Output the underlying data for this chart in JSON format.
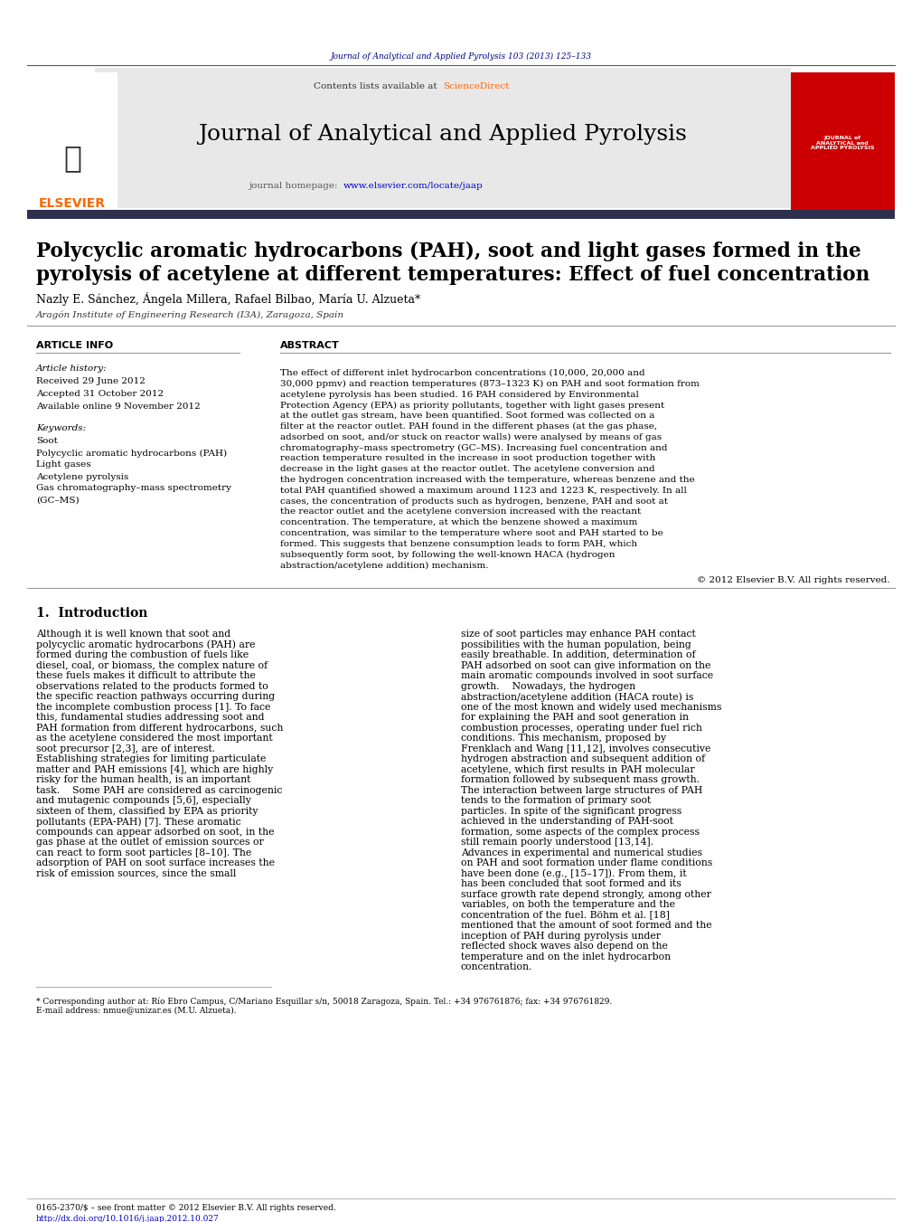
{
  "page_width": 10.2,
  "page_height": 13.51,
  "background_color": "#ffffff",
  "header_journal_text": "Journal of Analytical and Applied Pyrolysis 103 (2013) 125–133",
  "header_journal_color": "#00008B",
  "contents_text": "Contents lists available at",
  "sciencedirect_text": "ScienceDirect",
  "sciencedirect_color": "#FF6600",
  "journal_title": "Journal of Analytical and Applied Pyrolysis",
  "journal_homepage_text": "journal homepage:",
  "journal_homepage_url": "www.elsevier.com/locate/jaap",
  "journal_url_color": "#0000CC",
  "elsevier_color": "#FF6600",
  "elsevier_text": "ELSEVIER",
  "header_bg_color": "#E8E8E8",
  "dark_bar_color": "#2F2F4F",
  "article_title_line1": "Polycyclic aromatic hydrocarbons (PAH), soot and light gases formed in the",
  "article_title_line2": "pyrolysis of acetylene at different temperatures: Effect of fuel concentration",
  "authors": "Nazly E. Sánchez, Ángela Millera, Rafael Bilbao, María U. Alzueta*",
  "affiliation": "Aragón Institute of Engineering Research (I3A), Zaragoza, Spain",
  "article_info_label": "ARTICLE INFO",
  "abstract_label": "ABSTRACT",
  "article_history_label": "Article history:",
  "received_text": "Received 29 June 2012",
  "revised_text": "Accepted 31 October 2012",
  "available_text": "Available online 9 November 2012",
  "keywords_label": "Keywords:",
  "keyword1": "Soot",
  "keyword2": "Polycyclic aromatic hydrocarbons (PAH)",
  "keyword3": "Light gases",
  "keyword4": "Acetylene pyrolysis",
  "keyword5": "Gas chromatography–mass spectrometry",
  "keyword6": "(GC–MS)",
  "abstract_text": "The effect of different inlet hydrocarbon concentrations (10,000, 20,000 and 30,000 ppmv) and reaction temperatures (873–1323 K) on PAH and soot formation from acetylene pyrolysis has been studied. 16 PAH considered by Environmental Protection Agency (EPA) as priority pollutants, together with light gases present at the outlet gas stream, have been quantified. Soot formed was collected on a filter at the reactor outlet. PAH found in the different phases (at the gas phase, adsorbed on soot, and/or stuck on reactor walls) were analysed by means of gas chromatography–mass spectrometry (GC–MS). Increasing fuel concentration and reaction temperature resulted in the increase in soot production together with decrease in the light gases at the reactor outlet. The acetylene conversion and the hydrogen concentration increased with the temperature, whereas benzene and the total PAH quantified showed a maximum around 1123 and 1223 K, respectively. In all cases, the concentration of products such as hydrogen, benzene, PAH and soot at the reactor outlet and the acetylene conversion increased with the reactant concentration. The temperature, at which the benzene showed a maximum concentration, was similar to the temperature where soot and PAH started to be formed. This suggests that benzene consumption leads to form PAH, which subsequently form soot, by following the well-known HACA (hydrogen abstraction/acetylene addition) mechanism.",
  "copyright_text": "© 2012 Elsevier B.V. All rights reserved.",
  "intro_section_title": "1.  Introduction",
  "intro_col1": "Although it is well known that soot and polycyclic aromatic hydrocarbons (PAH) are formed during the combustion of fuels like diesel, coal, or biomass, the complex nature of these fuels makes it difficult to attribute the observations related to the products formed to the specific reaction pathways occurring during the incomplete combustion process [1]. To face this, fundamental studies addressing soot and PAH formation from different hydrocarbons, such as the acetylene considered the most important soot precursor [2,3], are of interest. Establishing strategies for limiting particulate matter and PAH emissions [4], which are highly risky for the human health, is an important task.\n   Some PAH are considered as carcinogenic and mutagenic compounds [5,6], especially sixteen of them, classified by EPA as priority pollutants (EPA-PAH) [7]. These aromatic compounds can appear adsorbed on soot, in the gas phase at the outlet of emission sources or can react to form soot particles [8–10]. The adsorption of PAH on soot surface increases the risk of emission sources, since the small",
  "intro_col2": "size of soot particles may enhance PAH contact possibilities with the human population, being easily breathable. In addition, determination of PAH adsorbed on soot can give information on the main aromatic compounds involved in soot surface growth.\n   Nowadays, the hydrogen abstraction/acetylene addition (HACA route) is one of the most known and widely used mechanisms for explaining the PAH and soot generation in combustion processes, operating under fuel rich conditions. This mechanism, proposed by Frenklach and Wang [11,12], involves consecutive hydrogen abstraction and subsequent addition of acetylene, which first results in PAH molecular formation followed by subsequent mass growth. The interaction between large structures of PAH tends to the formation of primary soot particles. In spite of the significant progress achieved in the understanding of PAH-soot formation, some aspects of the complex process still remain poorly understood [13,14].\n   Advances in experimental and numerical studies on PAH and soot formation under flame conditions have been done (e.g., [15–17]). From them, it has been concluded that soot formed and its surface growth rate depend strongly, among other variables, on both the temperature and the concentration of the fuel. Böhm et al. [18] mentioned that the amount of soot formed and the inception of PAH during pyrolysis under reflected shock waves also depend on the temperature and on the inlet hydrocarbon concentration.",
  "footnote_star": "* Corresponding author at: Río Ebro Campus, C/Mariano Esquillar s/n, 50018 Zaragoza, Spain. Tel.: +34 976761876; fax: +34 976761829.",
  "footnote_email": "E-mail address: nmue@unizar.es (M.U. Alzueta).",
  "footer_issn": "0165-2370/$ – see front matter © 2012 Elsevier B.V. All rights reserved.",
  "footer_doi": "http://dx.doi.org/10.1016/j.jaap.2012.10.027"
}
